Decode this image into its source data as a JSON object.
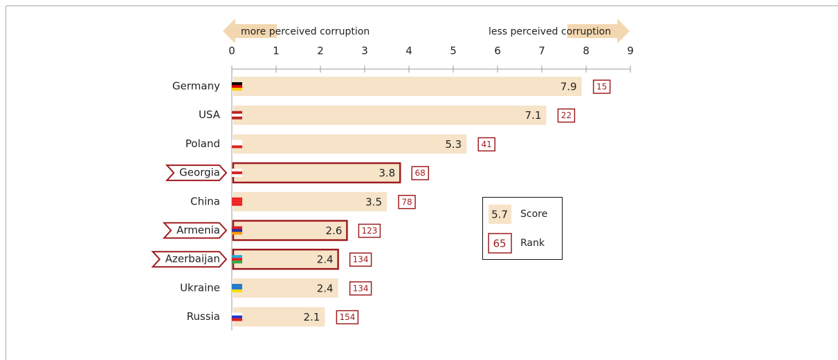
{
  "chart_data": {
    "type": "bar",
    "orientation": "horizontal",
    "annotations": [
      "more perceived corruption",
      "less perceived corruption"
    ],
    "categories": [
      "Germany",
      "USA",
      "Poland",
      "Georgia",
      "China",
      "Armenia",
      "Azerbaijan",
      "Ukraine",
      "Russia"
    ],
    "values": [
      7.9,
      7.1,
      5.3,
      3.8,
      3.5,
      2.6,
      2.4,
      2.4,
      2.1
    ],
    "ranks": [
      15,
      22,
      41,
      68,
      78,
      123,
      134,
      134,
      154
    ],
    "highlighted": [
      false,
      false,
      false,
      true,
      false,
      true,
      true,
      false,
      false
    ],
    "color": "#f6e3c8",
    "highlight_color": "#9e1b1e",
    "xlim": [
      0,
      9
    ],
    "xticks": [
      0,
      1,
      2,
      3,
      4,
      5,
      6,
      7,
      8,
      9
    ],
    "legend": {
      "score_example": 5.7,
      "score_label": "Score",
      "rank_example": 65,
      "rank_label": "Rank"
    }
  }
}
